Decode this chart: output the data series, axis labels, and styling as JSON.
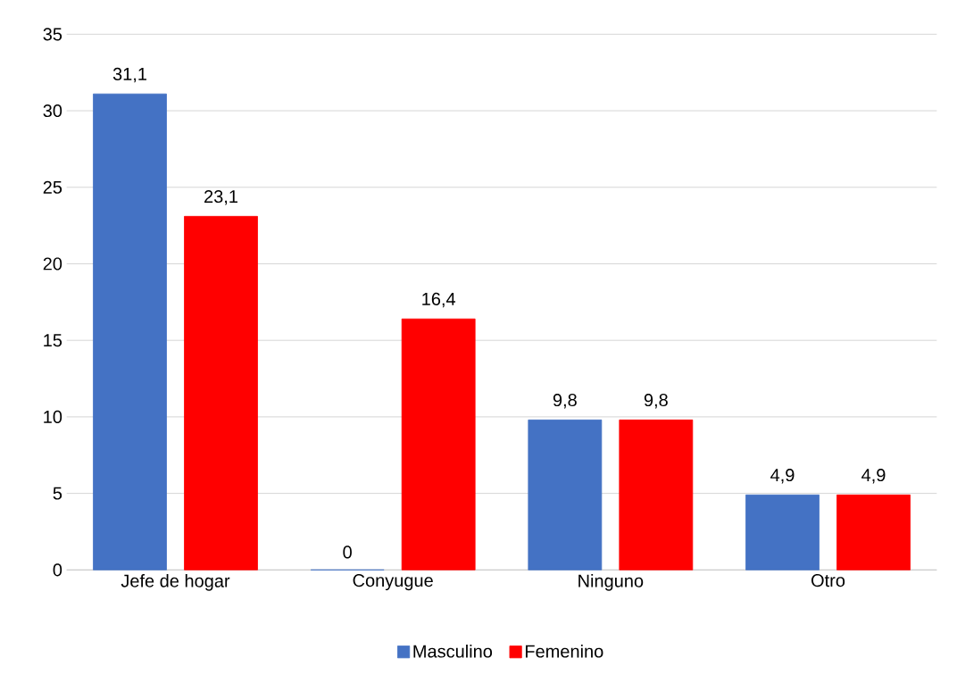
{
  "chart_data": {
    "type": "bar",
    "categories": [
      "Jefe de hogar",
      "Conyugue",
      "Ninguno",
      "Otro"
    ],
    "series": [
      {
        "name": "Masculino",
        "color": "#4472c4",
        "values": [
          31.1,
          0,
          9.8,
          4.9
        ],
        "value_labels": [
          "31,1",
          "0",
          "9,8",
          "4,9"
        ]
      },
      {
        "name": "Femenino",
        "color": "#ff0000",
        "values": [
          23.1,
          16.4,
          9.8,
          4.9
        ],
        "value_labels": [
          "23,1",
          "16,4",
          "9,8",
          "4,9"
        ]
      }
    ],
    "ylim": [
      0,
      35
    ],
    "yticks": [
      0,
      5,
      10,
      15,
      20,
      25,
      30,
      35
    ],
    "grid": "y",
    "legend": "bottom"
  }
}
